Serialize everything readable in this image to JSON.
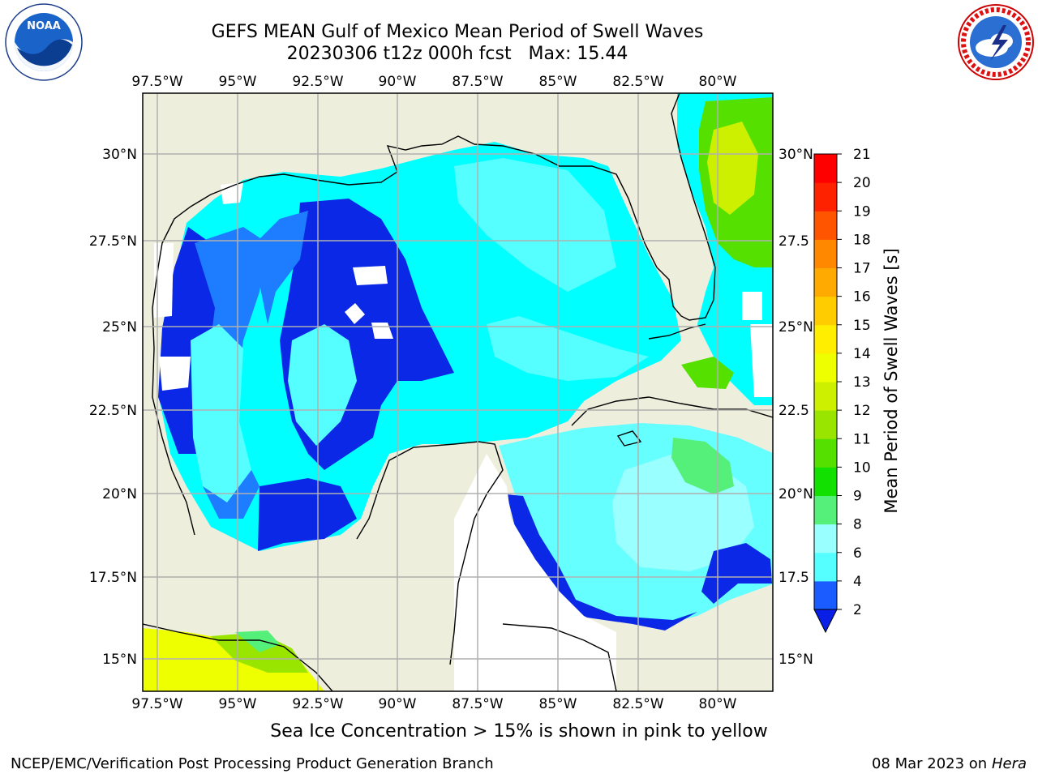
{
  "title_line1": "GEFS MEAN Gulf of Mexico Mean Period of Swell Waves",
  "title_line2": "20230306 t12z 000h fcst   Max: 15.44",
  "lon_labels": [
    "97.5°W",
    "95°W",
    "92.5°W",
    "90°W",
    "87.5°W",
    "85°W",
    "82.5°W",
    "80°W"
  ],
  "lat_labels_left": [
    "30°N",
    "27.5°N",
    "25°N",
    "22.5°N",
    "20°N",
    "17.5°N",
    "15°N"
  ],
  "lat_labels_right": [
    "30°N",
    "27.5",
    "25°N",
    "22.5",
    "20°N",
    "17.5",
    "15°N"
  ],
  "colorbar": {
    "label": "Mean Period of Swell Waves [s]",
    "ticks": [
      "2",
      "4",
      "6",
      "8",
      "9",
      "10",
      "11",
      "12",
      "13",
      "14",
      "15",
      "16",
      "17",
      "18",
      "19",
      "20",
      "21"
    ],
    "colors": [
      "#1a5cff",
      "#00e5ff",
      "#55ffff",
      "#99ffff",
      "#55f07a",
      "#11e000",
      "#55e000",
      "#99e500",
      "#ccf000",
      "#eeff00",
      "#ffee00",
      "#ffcc00",
      "#ffaa00",
      "#ff8800",
      "#ff5500",
      "#ff2200",
      "#ff0000"
    ],
    "extend_color": "#0a1fe6"
  },
  "colors": {
    "land": "#eeeedd",
    "ocean_deep": "#0a28e6",
    "ocean_mid": "#1e7cff",
    "ocean_cyan": "#00ffff",
    "ocean_light": "#66ffff",
    "grid": "#b0b0b0"
  },
  "note": "Sea Ice Concentration > 15% is shown in pink to yellow",
  "footer_left": "NCEP/EMC/Verification Post Processing Product Generation Branch",
  "footer_date": "08 Mar 2023 on",
  "footer_host": "Hera",
  "logos": {
    "noaa": "NOAA",
    "noaa_ring": "NATIONAL OCEANIC AND ATMOSPHERIC ADMINISTRATION · U.S. DEPARTMENT OF COMMERCE",
    "nws_ring": "NATIONAL WEATHER SERVICE"
  }
}
